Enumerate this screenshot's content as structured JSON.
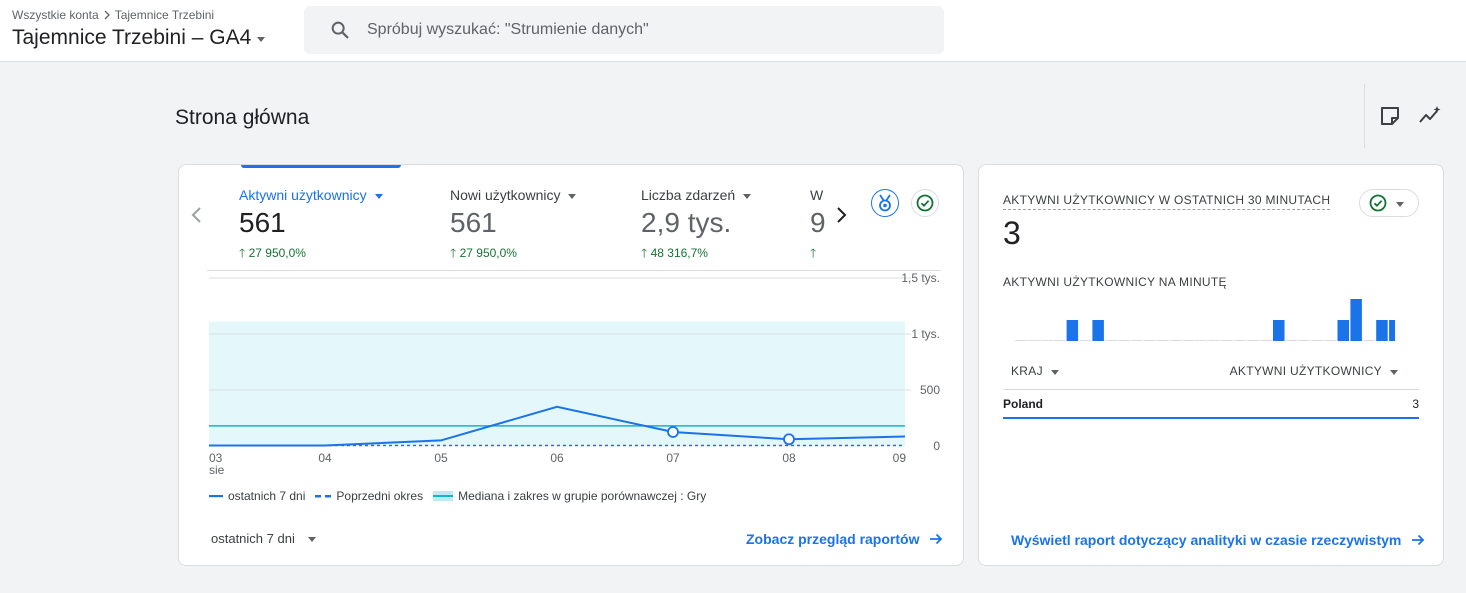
{
  "header": {
    "breadcrumb": [
      "Wszystkie konta",
      "Tajemnice Trzebini"
    ],
    "property_name": "Tajemnice Trzebini – GA4",
    "search_placeholder": "Spróbuj wyszukać: \"Strumienie danych\""
  },
  "page": {
    "title": "Strona główna",
    "toolbar_icons": [
      "note-icon",
      "insights-trend-icon"
    ]
  },
  "main_card": {
    "metrics": [
      {
        "label": "Aktywni użytkownicy",
        "value": "561",
        "change": "27 950,0%",
        "active": true
      },
      {
        "label": "Nowi użytkownicy",
        "value": "561",
        "change": "27 950,0%",
        "active": false
      },
      {
        "label": "Liczba zdarzeń",
        "value": "2,9 tys.",
        "change": "48 316,7%",
        "active": false
      },
      {
        "label": "W",
        "value": "9",
        "change": "",
        "active": false
      }
    ],
    "legend": {
      "current": "ostatnich 7 dni",
      "previous": "Poprzedni okres",
      "benchmark": "Mediana i zakres w grupie porównawczej : Gry"
    },
    "period_label": "ostatnich 7 dni",
    "link_label": "Zobacz przegląd raportów"
  },
  "chart_data": {
    "type": "line",
    "x": [
      "03 sie",
      "04",
      "05",
      "06",
      "07",
      "08",
      "09"
    ],
    "x_tick_labels": [
      "03",
      "04",
      "05",
      "06",
      "07",
      "08",
      "09"
    ],
    "x_sublabel": "sie",
    "y_ticks": [
      "0",
      "500",
      "1 tys.",
      "1,5 tys."
    ],
    "ylim": [
      0,
      1500
    ],
    "series": [
      {
        "name": "ostatnich 7 dni",
        "values": [
          5,
          5,
          50,
          350,
          125,
          60,
          85
        ],
        "style": "solid",
        "color": "#1a73e8"
      },
      {
        "name": "Poprzedni okres",
        "values": [
          0,
          0,
          0,
          0,
          0,
          0,
          0
        ],
        "style": "dashed",
        "color": "#1a73e8"
      }
    ],
    "benchmark": {
      "name": "Mediana i zakres w grupie porównawczej : Gry",
      "median": 180,
      "range_low": 0,
      "range_high": 1110,
      "color": "#12b5cb"
    },
    "markers": [
      4,
      5
    ],
    "grid": true
  },
  "realtime_card": {
    "title": "AKTYWNI UŻYTKOWNICY W OSTATNICH 30 MINUTACH",
    "value": "3",
    "subtitle": "AKTYWNI UŻYTKOWNICY NA MINUTĘ",
    "per_minute": [
      0,
      0,
      0,
      0,
      1,
      0,
      1,
      0,
      0,
      0,
      0,
      0,
      0,
      0,
      0,
      0,
      0,
      0,
      0,
      0,
      1,
      0,
      0,
      0,
      0,
      1,
      2,
      0,
      1,
      1
    ],
    "table": {
      "col_country": "KRAJ",
      "col_users": "AKTYWNI UŻYTKOWNICY",
      "rows": [
        {
          "country": "Poland",
          "users": "3"
        }
      ]
    },
    "link_label": "Wyświetl raport dotyczący analityki w czasie rzeczywistym"
  },
  "colors": {
    "accent": "#1a73e8",
    "positive": "#137333",
    "benchmark_fill": "#e4f7fb",
    "benchmark_line": "#12b5cb"
  }
}
